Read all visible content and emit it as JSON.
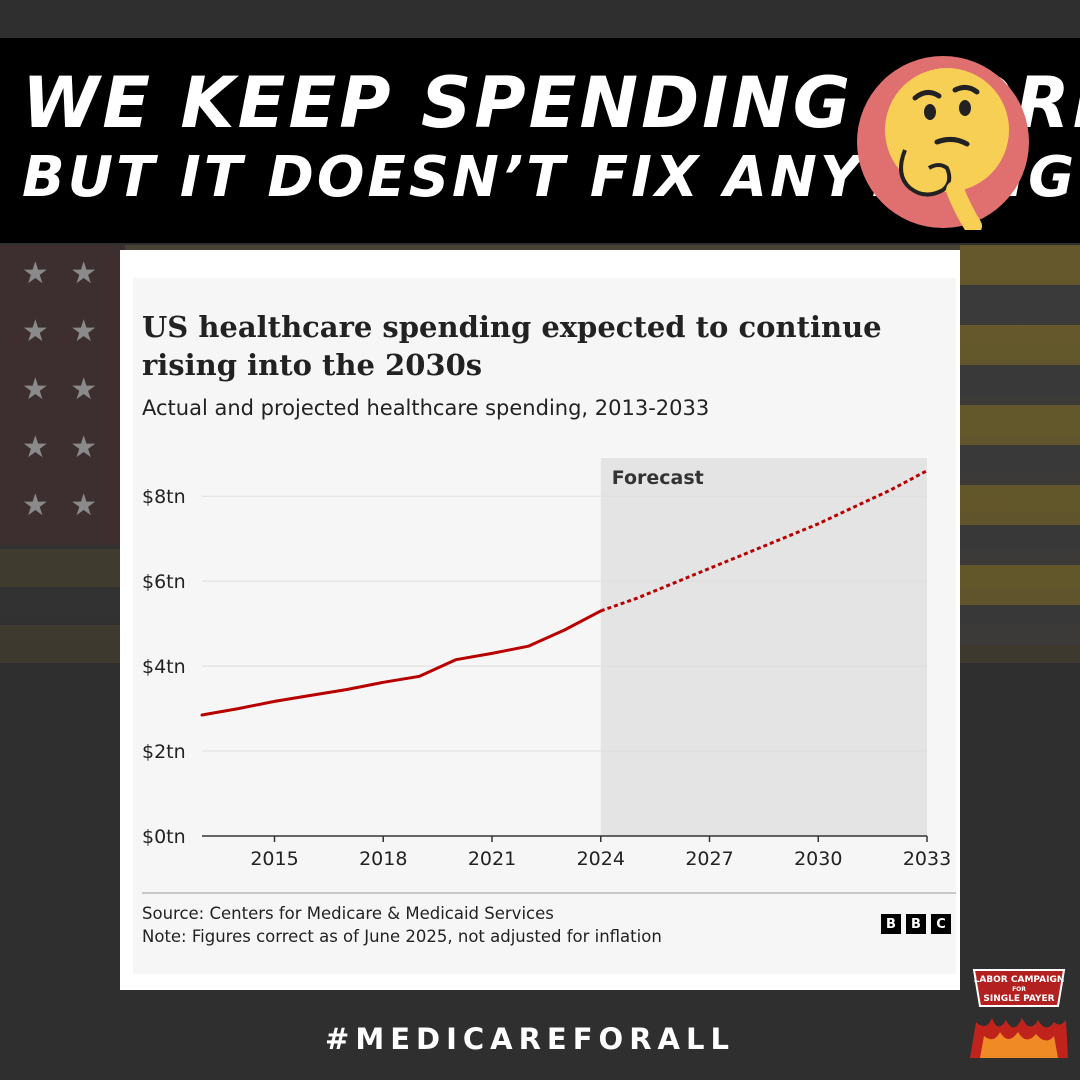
{
  "headline": {
    "line1": "WE KEEP SPENDING MORE",
    "line2": "BUT IT DOESN’T FIX ANYTHING"
  },
  "colors": {
    "banner_bg": "#000000",
    "line": "#b80000",
    "forecast_band": "#e4e4e4",
    "emoji_circle": "#e07070",
    "emoji_face": "#f7cf55"
  },
  "icons": {
    "emoji": "thinking-face-icon",
    "logo": "labor-campaign-logo-icon",
    "bbc": "bbc-logo-icon"
  },
  "chart": {
    "title": "US healthcare spending expected to continue rising into the 2030s",
    "subtitle": "Actual and projected healthcare spending, 2013-2033",
    "forecast_label": "Forecast",
    "source": "Source: Centers for Medicare & Medicaid Services",
    "note": "Note: Figures correct as of June 2025, not adjusted for inflation",
    "bbc_letters": [
      "B",
      "B",
      "C"
    ]
  },
  "chart_data": {
    "type": "line",
    "title": "US healthcare spending expected to continue rising into the 2030s",
    "subtitle": "Actual and projected healthcare spending, 2013-2033",
    "xlabel": "",
    "ylabel": "",
    "xlim": [
      2013,
      2033
    ],
    "ylim": [
      0,
      8.9
    ],
    "x_ticks": [
      2015,
      2018,
      2021,
      2024,
      2027,
      2030,
      2033
    ],
    "y_ticks": [
      0,
      2,
      4,
      6,
      8
    ],
    "y_tick_labels": [
      "$0tn",
      "$2tn",
      "$4tn",
      "$6tn",
      "$8tn"
    ],
    "grid": true,
    "forecast_range": [
      2024,
      2033
    ],
    "series": [
      {
        "style": "solid",
        "x": [
          2013,
          2014,
          2015,
          2016,
          2017,
          2018,
          2019,
          2020,
          2021,
          2022,
          2023,
          2024
        ],
        "y": [
          2.85,
          3.0,
          3.17,
          3.31,
          3.45,
          3.62,
          3.76,
          4.15,
          4.3,
          4.47,
          4.85,
          5.3
        ]
      },
      {
        "style": "dashed",
        "x": [
          2024,
          2025,
          2026,
          2027,
          2028,
          2029,
          2030,
          2031,
          2032,
          2033
        ],
        "y": [
          5.3,
          5.6,
          5.95,
          6.3,
          6.65,
          7.0,
          7.35,
          7.75,
          8.15,
          8.6
        ]
      }
    ]
  },
  "hashtag": "#MEDICAREFORALL",
  "logo": {
    "line1": "LABOR CAMPAIGN",
    "line2": "FOR",
    "line3": "SINGLE PAYER"
  }
}
